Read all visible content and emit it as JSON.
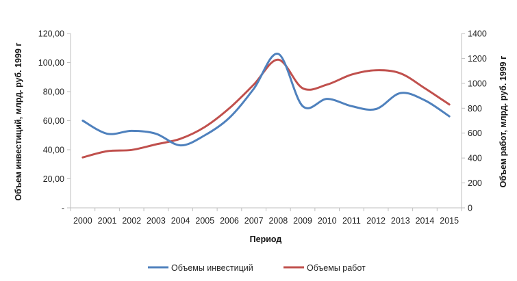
{
  "chart_data": {
    "type": "line",
    "x": [
      "2000",
      "2001",
      "2002",
      "2003",
      "2004",
      "2005",
      "2006",
      "2007",
      "2008",
      "2009",
      "2010",
      "2011",
      "2012",
      "2013",
      "2014",
      "2015"
    ],
    "xlabel": "Период",
    "ylabel_left": "Объем инвестиций, млрд. руб. 1999 г",
    "ylabel_right": "Объем работ, млрд. руб. 1999 г",
    "ylim_left": [
      0,
      120
    ],
    "ylim_right": [
      0,
      1400
    ],
    "left_ticks": [
      "-",
      "20,00",
      "40,00",
      "60,00",
      "80,00",
      "100,00",
      "120,00"
    ],
    "right_ticks": [
      "0",
      "200",
      "400",
      "600",
      "800",
      "1000",
      "1200",
      "1400"
    ],
    "grid": false,
    "legend_position": "bottom",
    "series": [
      {
        "name": "Объемы инвестиций",
        "axis": "left",
        "color": "#4F81BD",
        "values": [
          60,
          51,
          53,
          51,
          43,
          50,
          62,
          82,
          106,
          70,
          75,
          70,
          68,
          79,
          74,
          63
        ]
      },
      {
        "name": "Объемы работ",
        "axis": "right",
        "color": "#C0504D",
        "values": [
          405,
          455,
          465,
          510,
          555,
          650,
          800,
          990,
          1190,
          960,
          990,
          1070,
          1105,
          1080,
          960,
          830
        ]
      }
    ]
  }
}
